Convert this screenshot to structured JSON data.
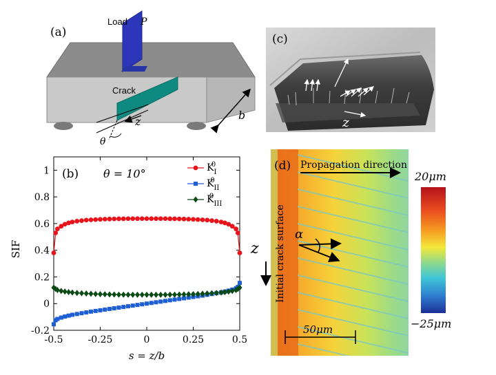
{
  "panel_a": {
    "label": "(a)",
    "load_label": "Load",
    "load_symbol": "P",
    "crack_label": "Crack",
    "z_label": "z",
    "theta_label": "θ",
    "b_label": "b"
  },
  "panel_c": {
    "label": "(c)",
    "z_label": "z"
  },
  "panel_d": {
    "label": "(d)",
    "propagation_label": "Propagation direction",
    "initial_crack_label": "Initial crack surface",
    "z_label": "z",
    "alpha_label": "α",
    "scalebar_label": "50μm",
    "colorbar_max": "20μm",
    "colorbar_min": "−25μm"
  },
  "chart_data": {
    "type": "line",
    "panel_label": "(b)",
    "annotation": "θ = 10°",
    "xlabel": "s = z/b",
    "ylabel": "SIF",
    "xlim": [
      -0.5,
      0.5
    ],
    "ylim": [
      -0.2,
      1.1
    ],
    "x_ticks": [
      -0.5,
      -0.25,
      0,
      0.25,
      0.5
    ],
    "x_tick_labels": [
      "-0.5",
      "-0.25",
      "0",
      "0.25",
      "0.5"
    ],
    "y_ticks": [
      -0.2,
      0,
      0.2,
      0.4,
      0.6,
      0.8,
      1.0
    ],
    "y_tick_labels": [
      "-0.2",
      "0",
      "0.2",
      "0.4",
      "0.6",
      "0.8",
      "1"
    ],
    "legend_position": "top-right",
    "series": [
      {
        "name": "K_I^0",
        "base": "K",
        "sub": "I",
        "sup": "0",
        "color": "#e8141b",
        "marker": "circle",
        "x": [
          -0.5,
          -0.49,
          -0.48,
          -0.46,
          -0.44,
          -0.42,
          -0.4,
          -0.375,
          -0.35,
          -0.325,
          -0.3,
          -0.275,
          -0.25,
          -0.225,
          -0.2,
          -0.175,
          -0.15,
          -0.125,
          -0.1,
          -0.075,
          -0.05,
          -0.025,
          0,
          0.025,
          0.05,
          0.075,
          0.1,
          0.125,
          0.15,
          0.175,
          0.2,
          0.225,
          0.25,
          0.275,
          0.3,
          0.325,
          0.35,
          0.375,
          0.4,
          0.42,
          0.44,
          0.46,
          0.48,
          0.49,
          0.5
        ],
        "values": [
          0.38,
          0.53,
          0.56,
          0.58,
          0.595,
          0.605,
          0.612,
          0.618,
          0.622,
          0.626,
          0.628,
          0.63,
          0.632,
          0.633,
          0.634,
          0.635,
          0.636,
          0.636,
          0.637,
          0.637,
          0.637,
          0.637,
          0.637,
          0.637,
          0.637,
          0.637,
          0.637,
          0.636,
          0.636,
          0.635,
          0.634,
          0.633,
          0.632,
          0.63,
          0.628,
          0.626,
          0.622,
          0.618,
          0.612,
          0.605,
          0.595,
          0.58,
          0.56,
          0.53,
          0.38
        ]
      },
      {
        "name": "K_II^0",
        "base": "K",
        "sub": "II",
        "sup": "0",
        "color": "#1f5fd6",
        "marker": "square",
        "x": [
          -0.5,
          -0.49,
          -0.48,
          -0.46,
          -0.44,
          -0.42,
          -0.4,
          -0.375,
          -0.35,
          -0.325,
          -0.3,
          -0.275,
          -0.25,
          -0.225,
          -0.2,
          -0.175,
          -0.15,
          -0.125,
          -0.1,
          -0.075,
          -0.05,
          -0.025,
          0,
          0.025,
          0.05,
          0.075,
          0.1,
          0.125,
          0.15,
          0.175,
          0.2,
          0.225,
          0.25,
          0.275,
          0.3,
          0.325,
          0.35,
          0.375,
          0.4,
          0.42,
          0.44,
          0.46,
          0.48,
          0.49,
          0.5
        ],
        "values": [
          -0.155,
          -0.125,
          -0.115,
          -0.105,
          -0.097,
          -0.09,
          -0.084,
          -0.078,
          -0.072,
          -0.066,
          -0.06,
          -0.055,
          -0.05,
          -0.045,
          -0.04,
          -0.035,
          -0.03,
          -0.025,
          -0.02,
          -0.015,
          -0.01,
          -0.005,
          0.0,
          0.005,
          0.01,
          0.015,
          0.02,
          0.025,
          0.03,
          0.035,
          0.04,
          0.045,
          0.05,
          0.055,
          0.06,
          0.066,
          0.072,
          0.078,
          0.084,
          0.09,
          0.097,
          0.105,
          0.115,
          0.125,
          0.155
        ]
      },
      {
        "name": "K_III^0",
        "base": "K",
        "sub": "III",
        "sup": "0",
        "color": "#0a4a14",
        "marker": "diamond",
        "x": [
          -0.5,
          -0.49,
          -0.48,
          -0.46,
          -0.44,
          -0.42,
          -0.4,
          -0.375,
          -0.35,
          -0.325,
          -0.3,
          -0.275,
          -0.25,
          -0.225,
          -0.2,
          -0.175,
          -0.15,
          -0.125,
          -0.1,
          -0.075,
          -0.05,
          -0.025,
          0,
          0.025,
          0.05,
          0.075,
          0.1,
          0.125,
          0.15,
          0.175,
          0.2,
          0.225,
          0.25,
          0.275,
          0.3,
          0.325,
          0.35,
          0.375,
          0.4,
          0.42,
          0.44,
          0.46,
          0.48,
          0.49,
          0.5
        ],
        "values": [
          0.12,
          0.11,
          0.102,
          0.095,
          0.09,
          0.086,
          0.083,
          0.08,
          0.078,
          0.076,
          0.074,
          0.072,
          0.071,
          0.07,
          0.069,
          0.068,
          0.067,
          0.067,
          0.066,
          0.066,
          0.066,
          0.066,
          0.066,
          0.066,
          0.066,
          0.066,
          0.066,
          0.067,
          0.067,
          0.068,
          0.069,
          0.07,
          0.071,
          0.072,
          0.074,
          0.076,
          0.078,
          0.08,
          0.083,
          0.086,
          0.09,
          0.095,
          0.102,
          0.11,
          0.12
        ]
      }
    ]
  }
}
